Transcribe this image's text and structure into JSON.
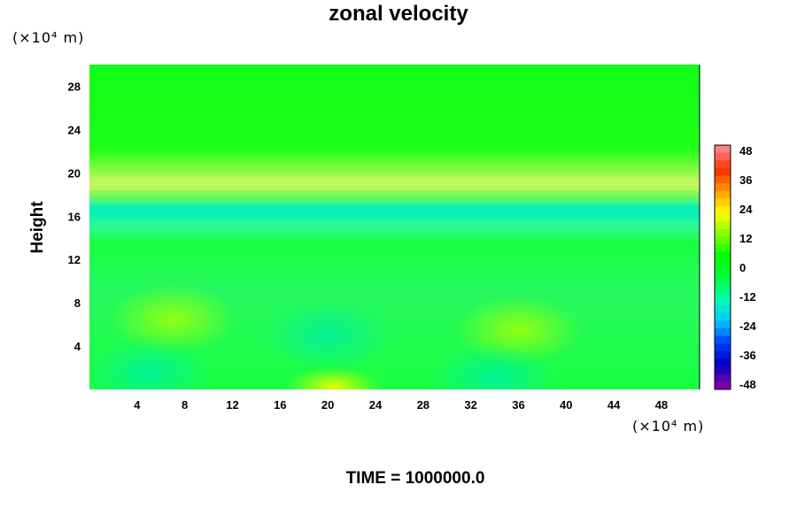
{
  "chart_data": {
    "type": "heatmap",
    "title": "zonal velocity",
    "xlabel": "",
    "ylabel": "Height",
    "x_unit": "(×10⁴ m)",
    "y_unit": "(×10⁴ m)",
    "xlim": [
      0,
      51.2
    ],
    "ylim": [
      0,
      30
    ],
    "x_ticks": [
      4,
      8,
      12,
      16,
      20,
      24,
      28,
      32,
      36,
      40,
      44,
      48
    ],
    "y_ticks": [
      4,
      8,
      12,
      16,
      20,
      24,
      28
    ],
    "colorbar": {
      "ticks": [
        48,
        36,
        24,
        12,
        0,
        -12,
        -24,
        -36,
        -48
      ],
      "range": [
        -48,
        48
      ],
      "colors": [
        "#8000b0",
        "#0000c0",
        "#0040ff",
        "#00c8ff",
        "#00ffb0",
        "#00ff40",
        "#00ff00",
        "#80ff00",
        "#ffff00",
        "#ffa000",
        "#ff3000",
        "#ff8080"
      ]
    },
    "annotation": "TIME = 1000000.0",
    "features": [
      {
        "kind": "positive_band",
        "y": 19,
        "value": 7
      },
      {
        "kind": "negative_band",
        "y": 16.5,
        "value": -7
      },
      {
        "kind": "positive_blob",
        "x": 7,
        "y": 6.5,
        "value": 6
      },
      {
        "kind": "positive_blob",
        "x": 36,
        "y": 5.5,
        "value": 5
      },
      {
        "kind": "positive_blob",
        "x": 20.5,
        "y": 0.3,
        "value": 9
      },
      {
        "kind": "negative_blob",
        "x": 20,
        "y": 5,
        "value": -4
      },
      {
        "kind": "negative_blob",
        "x": 5,
        "y": 1.5,
        "value": -5
      },
      {
        "kind": "negative_blob",
        "x": 34,
        "y": 1,
        "value": -4
      }
    ]
  }
}
